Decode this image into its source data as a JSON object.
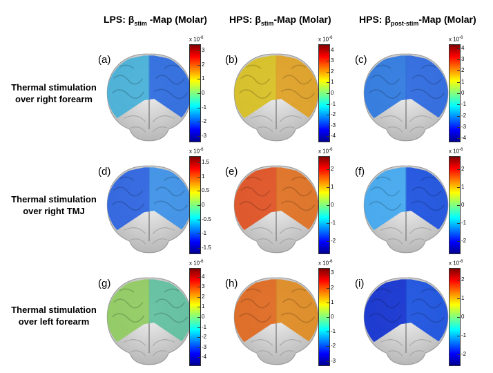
{
  "column_titles": [
    {
      "prefix": "LPS: β",
      "sub": "stim",
      "suffix": " -Map (Molar)"
    },
    {
      "prefix": "HPS: β",
      "sub": "stim",
      "suffix": "-Map (Molar)"
    },
    {
      "prefix": "HPS: β",
      "sub": "post-stim",
      "suffix": "-Map (Molar)"
    }
  ],
  "row_labels": [
    "Thermal stimulation over right forearm",
    "Thermal stimulation over right TMJ",
    "Thermal stimulation over left forearm"
  ],
  "colorbar_exponent": {
    "base": "x 10",
    "power": "-6"
  },
  "panels": [
    {
      "letter": "(a)",
      "range": 3.4,
      "ticks": [
        "3",
        "2",
        "1",
        "0",
        "-1",
        "-2",
        "-3"
      ],
      "colors": [
        "#45b0d8",
        "#2a6ae0"
      ]
    },
    {
      "letter": "(b)",
      "range": 4.5,
      "ticks": [
        "4",
        "3",
        "2",
        "1",
        "0",
        "-1",
        "-2",
        "-3",
        "-4"
      ],
      "colors": [
        "#d8c020",
        "#e0a022"
      ]
    },
    {
      "letter": "(c)",
      "range": 4.3,
      "ticks": [
        "4",
        "3",
        "2",
        "1",
        "0",
        "-1",
        "-2",
        "-3",
        "-4"
      ],
      "colors": [
        "#2c78e0",
        "#2a68e0"
      ]
    },
    {
      "letter": "(d)",
      "range": 1.7,
      "ticks": [
        "1.5",
        "1",
        "0.5",
        "0",
        "-0.5",
        "-1",
        "-1.5"
      ],
      "colors": [
        "#2a62e0",
        "#3a90e8"
      ]
    },
    {
      "letter": "(e)",
      "range": 2.7,
      "ticks": [
        "2",
        "1",
        "0",
        "-1",
        "-2"
      ],
      "colors": [
        "#e05020",
        "#e07020"
      ]
    },
    {
      "letter": "(f)",
      "range": 2.7,
      "ticks": [
        "2",
        "1",
        "0",
        "-1",
        "-2"
      ],
      "colors": [
        "#40a8f0",
        "#1a50e0"
      ]
    },
    {
      "letter": "(g)",
      "range": 4.8,
      "ticks": [
        "4",
        "3",
        "2",
        "1",
        "0",
        "-1",
        "-2",
        "-3",
        "-4"
      ],
      "colors": [
        "#90cc60",
        "#60c0a0"
      ]
    },
    {
      "letter": "(h)",
      "range": 3.3,
      "ticks": [
        "3",
        "2",
        "1",
        "0",
        "-1",
        "-2",
        "-3"
      ],
      "colors": [
        "#e0681e",
        "#e08a20"
      ]
    },
    {
      "letter": "(i)",
      "range": 2.6,
      "ticks": [
        "2",
        "1",
        "0",
        "-1",
        "-2"
      ],
      "colors": [
        "#1030d0",
        "#1850e0"
      ]
    }
  ]
}
